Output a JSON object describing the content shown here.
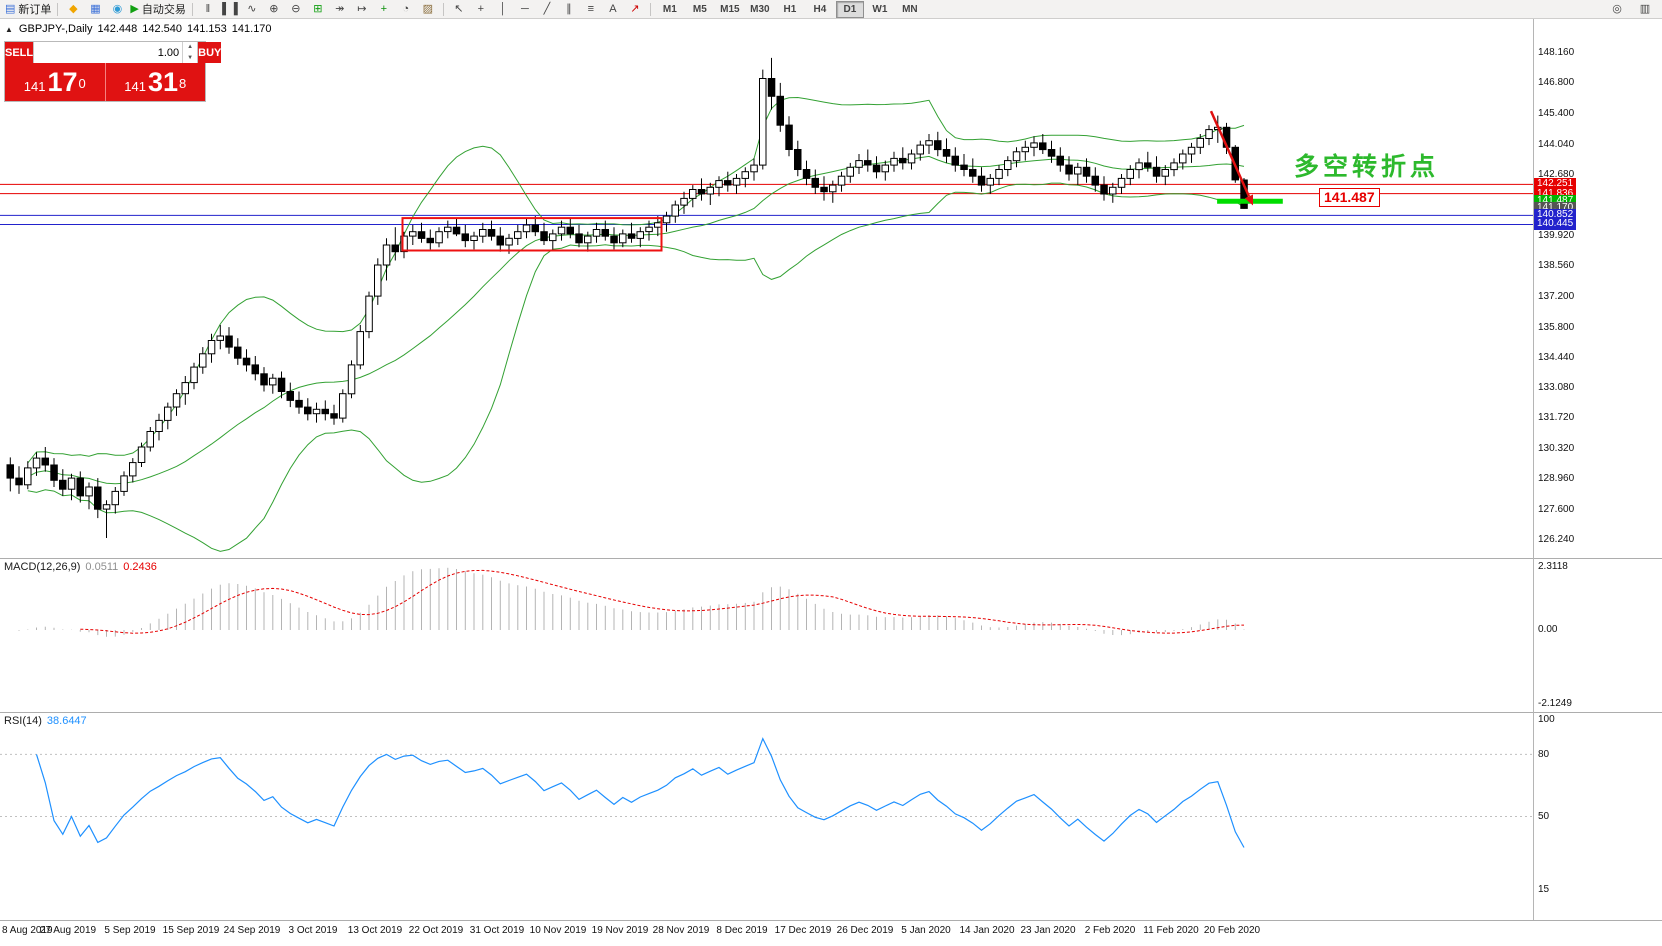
{
  "toolbar": {
    "left_groups": [
      {
        "items": [
          {
            "name": "new-order-button",
            "icon": "new-order-icon",
            "label": "新订单"
          }
        ]
      },
      {
        "items": [
          {
            "name": "metaquotes-button",
            "icon": "metaquotes-icon"
          },
          {
            "name": "chart-windows-button",
            "icon": "chart-windows-icon"
          },
          {
            "name": "community-button",
            "icon": "community-icon"
          },
          {
            "name": "autotrading-button",
            "icon": "autotrading-icon",
            "label": "自动交易"
          }
        ]
      },
      {
        "items": [
          {
            "name": "bar-chart-button",
            "icon": "bar-chart-icon"
          },
          {
            "name": "candlestick-chart-button",
            "icon": "candlestick-icon"
          },
          {
            "name": "line-chart-button",
            "icon": "line-chart-icon"
          },
          {
            "name": "zoom-in-button",
            "icon": "zoom-in-icon"
          },
          {
            "name": "zoom-out-button",
            "icon": "zoom-out-icon"
          },
          {
            "name": "tile-windows-button",
            "icon": "tile-windows-icon"
          },
          {
            "name": "auto-scroll-button",
            "icon": "auto-scroll-icon"
          },
          {
            "name": "chart-shift-button",
            "icon": "chart-shift-icon"
          },
          {
            "name": "indicators-button",
            "icon": "indicators-icon"
          },
          {
            "name": "periods-button",
            "icon": "periods-icon"
          },
          {
            "name": "templates-button",
            "icon": "templates-icon"
          }
        ]
      },
      {
        "items": [
          {
            "name": "cursor-button",
            "icon": "cursor-icon"
          },
          {
            "name": "crosshair-button",
            "icon": "crosshair-icon"
          },
          {
            "name": "vertical-line-button",
            "icon": "vertical-line-icon"
          },
          {
            "name": "horizontal-line-button",
            "icon": "horizontal-line-icon"
          },
          {
            "name": "trendline-button",
            "icon": "trendline-icon"
          },
          {
            "name": "channel-button",
            "icon": "channel-icon"
          },
          {
            "name": "fibonacci-button",
            "icon": "fibonacci-icon"
          },
          {
            "name": "text-button",
            "icon": "text-icon"
          },
          {
            "name": "arrows-button",
            "icon": "arrows-icon"
          }
        ]
      }
    ],
    "timeframes": {
      "options": [
        "M1",
        "M5",
        "M15",
        "M30",
        "H1",
        "H4",
        "D1",
        "W1",
        "MN"
      ],
      "active": "D1"
    },
    "right_buttons": [
      {
        "name": "quick-search-button",
        "icon": "search-icon"
      },
      {
        "name": "data-window-button",
        "icon": "data-window-icon"
      }
    ]
  },
  "symbol_line": {
    "symbol": "GBPJPY-,Daily",
    "open": "142.448",
    "high": "142.540",
    "low": "141.153",
    "close": "141.170"
  },
  "one_click": {
    "sell_label": "SELL",
    "buy_label": "BUY",
    "lot": "1.00",
    "sell_price": {
      "prefix": "141",
      "big": "17",
      "sup": "0"
    },
    "buy_price": {
      "prefix": "141",
      "big": "31",
      "sup": "8"
    }
  },
  "annotations": {
    "turning_point": {
      "text": "多空转折点",
      "color": "#2db92d"
    },
    "price_note": {
      "text": "141.487",
      "color": "#e60000"
    }
  },
  "hlines": [
    {
      "price": 142.251,
      "color": "#e60000",
      "width": 1
    },
    {
      "price": 141.836,
      "color": "#e60000",
      "width": 1
    },
    {
      "price": 140.852,
      "color": "#2222cc",
      "width": 1
    },
    {
      "price": 140.445,
      "color": "#2222cc",
      "width": 1
    }
  ],
  "shapes": {
    "rectangle": {
      "i1": 45.2,
      "i2": 74.8,
      "p1": 140.73,
      "p2": 139.27,
      "color": "#ee1111"
    },
    "lime_segment": {
      "i1": 138.3,
      "i2": 145.8,
      "price": 141.487,
      "color": "#00dd00"
    },
    "arrow": {
      "i1": 137.6,
      "p1": 145.55,
      "i2": 142.4,
      "p2": 141.3,
      "color": "#e01010"
    }
  },
  "price_tags": [
    {
      "text": "142.251",
      "value": 142.251,
      "color": "#e60000"
    },
    {
      "text": "141.836",
      "value": 141.836,
      "color": "#e60000"
    },
    {
      "text": "141.487",
      "value": 141.487,
      "color": "#00b300"
    },
    {
      "text": "141.170",
      "value": 141.17,
      "color": "#555555"
    },
    {
      "text": "140.852",
      "value": 140.852,
      "color": "#2222cc"
    },
    {
      "text": "140.445",
      "value": 140.445,
      "color": "#2222cc"
    }
  ],
  "price_scale": {
    "labels": [
      {
        "text": "148.160",
        "value": 148.16
      },
      {
        "text": "146.800",
        "value": 146.8
      },
      {
        "text": "145.400",
        "value": 145.4
      },
      {
        "text": "144.040",
        "value": 144.04
      },
      {
        "text": "142.680",
        "value": 142.68
      },
      {
        "text": "139.920",
        "value": 139.92
      },
      {
        "text": "138.560",
        "value": 138.56
      },
      {
        "text": "137.200",
        "value": 137.2
      },
      {
        "text": "135.800",
        "value": 135.8
      },
      {
        "text": "134.440",
        "value": 134.44
      },
      {
        "text": "133.080",
        "value": 133.08
      },
      {
        "text": "131.720",
        "value": 131.72
      },
      {
        "text": "130.320",
        "value": 130.32
      },
      {
        "text": "128.960",
        "value": 128.96
      },
      {
        "text": "127.600",
        "value": 127.6
      },
      {
        "text": "126.240",
        "value": 126.24
      }
    ]
  },
  "panes": {
    "macd": {
      "label": "MACD(12,26,9)",
      "value1": "0.0511",
      "value2": "0.2436",
      "scale": [
        "2.3118",
        "0.00",
        "-2.1249"
      ],
      "histogram_color": "#b4b4b4",
      "signal_color": "#e60000"
    },
    "rsi": {
      "label": "RSI(14)",
      "value": "38.6447",
      "scale": [
        "100",
        "80",
        "50",
        "15"
      ],
      "levels": [
        80,
        50
      ],
      "line_color": "#1E90FF"
    }
  },
  "chart_data": {
    "type": "candlestick",
    "symbol": "GBPJPY-",
    "timeframe": "Daily",
    "ohlc_current": {
      "open": 142.448,
      "high": 142.54,
      "low": 141.153,
      "close": 141.17
    },
    "bollinger": {
      "period": 20,
      "deviation": 2,
      "color": "#33a133"
    },
    "date_labels": [
      "8 Aug 2019",
      "27 Aug 2019",
      "5 Sep 2019",
      "15 Sep 2019",
      "24 Sep 2019",
      "3 Oct 2019",
      "13 Oct 2019",
      "22 Oct 2019",
      "31 Oct 2019",
      "10 Nov 2019",
      "19 Nov 2019",
      "28 Nov 2019",
      "8 Dec 2019",
      "17 Dec 2019",
      "26 Dec 2019",
      "5 Jan 2020",
      "14 Jan 2020",
      "23 Jan 2020",
      "2 Feb 2020",
      "11 Feb 2020",
      "20 Feb 2020"
    ],
    "candles": [
      [
        129.62,
        129.95,
        128.42,
        129.02
      ],
      [
        129.02,
        129.55,
        128.31,
        128.72
      ],
      [
        128.72,
        129.78,
        128.52,
        129.48
      ],
      [
        129.48,
        130.18,
        129.12,
        129.92
      ],
      [
        129.92,
        130.42,
        129.31,
        129.61
      ],
      [
        129.61,
        129.92,
        128.62,
        128.92
      ],
      [
        128.92,
        129.42,
        128.22,
        128.52
      ],
      [
        128.52,
        129.22,
        128.02,
        129.02
      ],
      [
        129.02,
        129.32,
        127.92,
        128.22
      ],
      [
        128.22,
        128.82,
        127.62,
        128.62
      ],
      [
        128.62,
        129.02,
        127.22,
        127.62
      ],
      [
        127.62,
        128.02,
        126.32,
        127.82
      ],
      [
        127.82,
        128.62,
        127.42,
        128.42
      ],
      [
        128.42,
        129.32,
        128.22,
        129.12
      ],
      [
        129.12,
        129.92,
        128.82,
        129.72
      ],
      [
        129.72,
        130.62,
        129.52,
        130.42
      ],
      [
        130.42,
        131.32,
        130.22,
        131.12
      ],
      [
        131.12,
        131.92,
        130.72,
        131.62
      ],
      [
        131.62,
        132.42,
        131.22,
        132.22
      ],
      [
        132.22,
        133.02,
        131.82,
        132.82
      ],
      [
        132.82,
        133.62,
        132.32,
        133.32
      ],
      [
        133.32,
        134.22,
        133.02,
        134.02
      ],
      [
        134.02,
        134.92,
        133.72,
        134.62
      ],
      [
        134.62,
        135.52,
        134.22,
        135.22
      ],
      [
        135.22,
        135.92,
        134.82,
        135.42
      ],
      [
        135.42,
        135.82,
        134.62,
        134.92
      ],
      [
        134.92,
        135.32,
        134.12,
        134.42
      ],
      [
        134.42,
        134.82,
        133.82,
        134.12
      ],
      [
        134.12,
        134.52,
        133.42,
        133.72
      ],
      [
        133.72,
        134.02,
        132.92,
        133.22
      ],
      [
        133.22,
        133.72,
        132.82,
        133.52
      ],
      [
        133.52,
        133.82,
        132.62,
        132.92
      ],
      [
        132.92,
        133.32,
        132.22,
        132.52
      ],
      [
        132.52,
        132.92,
        131.92,
        132.22
      ],
      [
        132.22,
        132.62,
        131.62,
        131.92
      ],
      [
        131.92,
        132.42,
        131.52,
        132.12
      ],
      [
        132.12,
        132.52,
        131.62,
        131.92
      ],
      [
        131.92,
        132.32,
        131.42,
        131.72
      ],
      [
        131.72,
        133.02,
        131.52,
        132.82
      ],
      [
        132.82,
        134.32,
        132.62,
        134.12
      ],
      [
        134.12,
        135.92,
        133.92,
        135.62
      ],
      [
        135.62,
        137.42,
        135.32,
        137.22
      ],
      [
        137.22,
        138.92,
        136.82,
        138.62
      ],
      [
        138.62,
        139.82,
        137.92,
        139.52
      ],
      [
        139.52,
        140.32,
        138.82,
        139.22
      ],
      [
        139.22,
        140.12,
        138.92,
        139.92
      ],
      [
        139.92,
        140.42,
        139.52,
        140.12
      ],
      [
        140.12,
        140.52,
        139.62,
        139.82
      ],
      [
        139.82,
        140.22,
        139.32,
        139.62
      ],
      [
        139.62,
        140.32,
        139.42,
        140.12
      ],
      [
        140.12,
        140.62,
        139.82,
        140.32
      ],
      [
        140.32,
        140.72,
        139.92,
        140.02
      ],
      [
        140.02,
        140.42,
        139.42,
        139.72
      ],
      [
        139.72,
        140.12,
        139.32,
        139.92
      ],
      [
        139.92,
        140.52,
        139.62,
        140.22
      ],
      [
        140.22,
        140.62,
        139.72,
        139.92
      ],
      [
        139.92,
        140.32,
        139.22,
        139.52
      ],
      [
        139.52,
        140.02,
        139.12,
        139.82
      ],
      [
        139.82,
        140.42,
        139.52,
        140.12
      ],
      [
        140.12,
        140.72,
        139.82,
        140.42
      ],
      [
        140.42,
        140.82,
        139.92,
        140.12
      ],
      [
        140.12,
        140.52,
        139.52,
        139.72
      ],
      [
        139.72,
        140.22,
        139.32,
        140.02
      ],
      [
        140.02,
        140.62,
        139.72,
        140.32
      ],
      [
        140.32,
        140.72,
        139.82,
        140.02
      ],
      [
        140.02,
        140.42,
        139.42,
        139.62
      ],
      [
        139.62,
        140.12,
        139.22,
        139.92
      ],
      [
        139.92,
        140.52,
        139.62,
        140.22
      ],
      [
        140.22,
        140.62,
        139.72,
        139.92
      ],
      [
        139.92,
        140.32,
        139.32,
        139.62
      ],
      [
        139.62,
        140.22,
        139.42,
        140.02
      ],
      [
        140.02,
        140.52,
        139.62,
        139.82
      ],
      [
        139.82,
        140.32,
        139.42,
        140.12
      ],
      [
        140.12,
        140.62,
        139.72,
        140.32
      ],
      [
        140.32,
        140.82,
        139.92,
        140.52
      ],
      [
        140.52,
        141.02,
        140.12,
        140.82
      ],
      [
        140.82,
        141.52,
        140.52,
        141.32
      ],
      [
        141.32,
        141.92,
        140.92,
        141.62
      ],
      [
        141.62,
        142.22,
        141.22,
        142.02
      ],
      [
        142.02,
        142.52,
        141.52,
        141.82
      ],
      [
        141.82,
        142.32,
        141.32,
        142.12
      ],
      [
        142.12,
        142.62,
        141.72,
        142.42
      ],
      [
        142.42,
        142.82,
        141.92,
        142.22
      ],
      [
        142.22,
        142.72,
        141.82,
        142.52
      ],
      [
        142.52,
        143.02,
        142.12,
        142.82
      ],
      [
        142.82,
        143.42,
        142.42,
        143.12
      ],
      [
        143.12,
        147.42,
        142.92,
        147.02
      ],
      [
        147.02,
        147.95,
        145.62,
        146.22
      ],
      [
        146.22,
        146.82,
        144.62,
        144.92
      ],
      [
        144.92,
        145.32,
        143.52,
        143.82
      ],
      [
        143.82,
        144.22,
        142.62,
        142.92
      ],
      [
        142.92,
        143.32,
        142.22,
        142.52
      ],
      [
        142.52,
        142.92,
        141.82,
        142.12
      ],
      [
        142.12,
        142.62,
        141.52,
        141.92
      ],
      [
        141.92,
        142.42,
        141.42,
        142.22
      ],
      [
        142.22,
        142.82,
        141.92,
        142.62
      ],
      [
        142.62,
        143.22,
        142.32,
        143.02
      ],
      [
        143.02,
        143.62,
        142.72,
        143.32
      ],
      [
        143.32,
        143.82,
        142.82,
        143.12
      ],
      [
        143.12,
        143.52,
        142.52,
        142.82
      ],
      [
        142.82,
        143.32,
        142.42,
        143.12
      ],
      [
        143.12,
        143.72,
        142.82,
        143.42
      ],
      [
        143.42,
        143.92,
        142.92,
        143.22
      ],
      [
        143.22,
        143.82,
        142.92,
        143.62
      ],
      [
        143.62,
        144.22,
        143.32,
        144.02
      ],
      [
        144.02,
        144.52,
        143.62,
        144.22
      ],
      [
        144.22,
        144.62,
        143.52,
        143.82
      ],
      [
        143.82,
        144.32,
        143.22,
        143.52
      ],
      [
        143.52,
        143.92,
        142.82,
        143.12
      ],
      [
        143.12,
        143.62,
        142.62,
        142.92
      ],
      [
        142.92,
        143.42,
        142.32,
        142.62
      ],
      [
        142.62,
        143.02,
        141.92,
        142.22
      ],
      [
        142.22,
        142.72,
        141.82,
        142.52
      ],
      [
        142.52,
        143.12,
        142.22,
        142.92
      ],
      [
        142.92,
        143.52,
        142.62,
        143.32
      ],
      [
        143.32,
        143.92,
        143.02,
        143.72
      ],
      [
        143.72,
        144.22,
        143.32,
        143.92
      ],
      [
        143.92,
        144.42,
        143.52,
        144.12
      ],
      [
        144.12,
        144.52,
        143.62,
        143.82
      ],
      [
        143.82,
        144.22,
        143.22,
        143.52
      ],
      [
        143.52,
        143.92,
        142.82,
        143.12
      ],
      [
        143.12,
        143.52,
        142.42,
        142.72
      ],
      [
        142.72,
        143.22,
        142.22,
        143.02
      ],
      [
        143.02,
        143.42,
        142.32,
        142.62
      ],
      [
        142.62,
        143.02,
        141.92,
        142.22
      ],
      [
        142.22,
        142.62,
        141.52,
        141.82
      ],
      [
        141.82,
        142.32,
        141.42,
        142.12
      ],
      [
        142.12,
        142.72,
        141.82,
        142.52
      ],
      [
        142.52,
        143.12,
        142.22,
        142.92
      ],
      [
        142.92,
        143.42,
        142.52,
        143.22
      ],
      [
        143.22,
        143.72,
        142.82,
        143.02
      ],
      [
        143.02,
        143.52,
        142.32,
        142.62
      ],
      [
        142.62,
        143.12,
        142.22,
        142.92
      ],
      [
        142.92,
        143.42,
        142.62,
        143.22
      ],
      [
        143.22,
        143.82,
        142.92,
        143.62
      ],
      [
        143.62,
        144.12,
        143.22,
        143.92
      ],
      [
        143.92,
        144.52,
        143.62,
        144.32
      ],
      [
        144.32,
        144.92,
        144.02,
        144.72
      ],
      [
        144.72,
        145.35,
        144.12,
        144.82
      ],
      [
        144.82,
        145.02,
        143.62,
        143.92
      ],
      [
        143.92,
        144.02,
        142.32,
        142.45
      ],
      [
        142.448,
        142.54,
        141.153,
        141.17
      ]
    ]
  }
}
